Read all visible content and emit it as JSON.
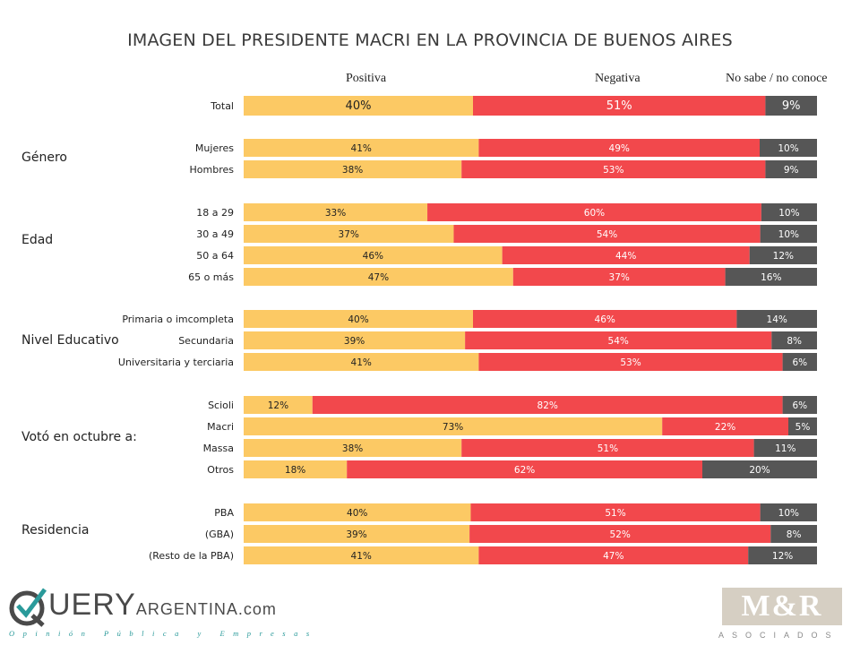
{
  "title": "IMAGEN DEL PRESIDENTE MACRI EN LA PROVINCIA DE BUENOS AIRES",
  "legend": {
    "positive": "Positiva",
    "negative": "Negativa",
    "unknown": "No sabe / no conoce"
  },
  "colors": {
    "positive": "#fcc964",
    "negative": "#f2484c",
    "unknown": "#565656"
  },
  "chart_data": {
    "type": "bar",
    "stacked": true,
    "orientation": "horizontal",
    "series_names": [
      "Positiva",
      "Negativa",
      "No sabe / no conoce"
    ],
    "groups": [
      {
        "name": "",
        "rows": [
          {
            "label": "Total",
            "values": [
              40,
              51,
              9
            ]
          }
        ]
      },
      {
        "name": "Género",
        "rows": [
          {
            "label": "Mujeres",
            "values": [
              41,
              49,
              10
            ]
          },
          {
            "label": "Hombres",
            "values": [
              38,
              53,
              9
            ]
          }
        ]
      },
      {
        "name": "Edad",
        "rows": [
          {
            "label": "18 a 29",
            "values": [
              33,
              60,
              10
            ]
          },
          {
            "label": "30 a 49",
            "values": [
              37,
              54,
              10
            ]
          },
          {
            "label": "50 a 64",
            "values": [
              46,
              44,
              12
            ]
          },
          {
            "label": "65 o más",
            "values": [
              47,
              37,
              16
            ]
          }
        ]
      },
      {
        "name": "Nivel Educativo",
        "rows": [
          {
            "label": "Primaria o imcompleta",
            "values": [
              40,
              46,
              14
            ]
          },
          {
            "label": "Secundaria",
            "values": [
              39,
              54,
              8
            ]
          },
          {
            "label": "Universitaria y terciaria",
            "values": [
              41,
              53,
              6
            ]
          }
        ]
      },
      {
        "name": "Votó en octubre a:",
        "rows": [
          {
            "label": "Scioli",
            "values": [
              12,
              82,
              6
            ]
          },
          {
            "label": "Macri",
            "values": [
              73,
              22,
              5
            ]
          },
          {
            "label": "Massa",
            "values": [
              38,
              51,
              11
            ]
          },
          {
            "label": "Otros",
            "values": [
              18,
              62,
              20
            ]
          }
        ]
      },
      {
        "name": "Residencia",
        "rows": [
          {
            "label": "PBA",
            "values": [
              40,
              51,
              10
            ]
          },
          {
            "label": "(GBA)",
            "values": [
              39,
              52,
              8
            ]
          },
          {
            "label": "(Resto de la PBA)",
            "values": [
              41,
              47,
              12
            ]
          }
        ]
      }
    ]
  },
  "logos": {
    "query_q": "Q",
    "query_mid": "UERY",
    "query_arg": "ARGENTINA",
    "query_com": ".com",
    "query_tagline": "Opinión Pública y Empresas",
    "mr_text": "M&R",
    "mr_sub": "ASOCIADOS"
  }
}
